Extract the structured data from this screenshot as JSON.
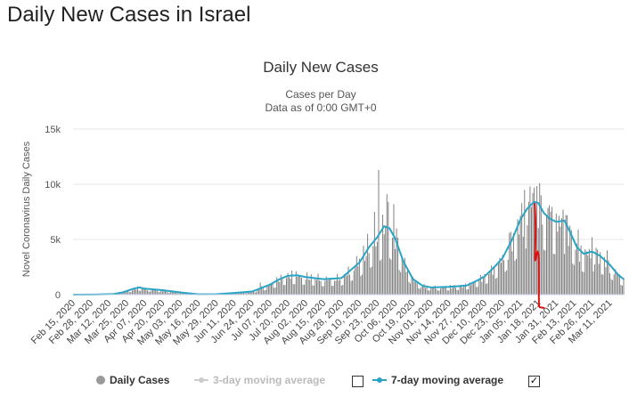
{
  "page": {
    "title": "Daily New Cases in Israel"
  },
  "chart_data": {
    "type": "bar",
    "title": "Daily New Cases",
    "subtitle_line1": "Cases per Day",
    "subtitle_line2": "Data as of 0:00 GMT+0",
    "ylabel": "Novel Coronavirus Daily Cases",
    "ylim": [
      0,
      15000
    ],
    "yticks": [
      0,
      5000,
      10000,
      15000
    ],
    "ytick_labels": [
      "0",
      "5k",
      "10k",
      "15k"
    ],
    "date_start": "2020-02-15",
    "date_end": "2021-03-21",
    "xtick_labels": [
      "Feb 15, 2020",
      "Feb 28, 2020",
      "Mar 12, 2020",
      "Mar 25, 2020",
      "Apr 07, 2020",
      "Apr 20, 2020",
      "May 03, 2020",
      "May 16, 2020",
      "May 29, 2020",
      "Jun 11, 2020",
      "Jun 24, 2020",
      "Jul 07, 2020",
      "Jul 20, 2020",
      "Aug 02, 2020",
      "Aug 15, 2020",
      "Aug 28, 2020",
      "Sep 10, 2020",
      "Sep 23, 2020",
      "Oct 06, 2020",
      "Oct 19, 2020",
      "Nov 01, 2020",
      "Nov 14, 2020",
      "Nov 27, 2020",
      "Dec 10, 2020",
      "Dec 23, 2020",
      "Jan 05, 2021",
      "Jan 18, 2021",
      "Jan 31, 2021",
      "Feb 13, 2021",
      "Feb 26, 2021",
      "Mar 11, 2021"
    ],
    "series": [
      {
        "name": "7-day moving average",
        "color": "#2aa4c5",
        "points": [
          [
            "2020-02-15",
            0
          ],
          [
            "2020-03-01",
            5
          ],
          [
            "2020-03-15",
            50
          ],
          [
            "2020-03-22",
            200
          ],
          [
            "2020-03-29",
            500
          ],
          [
            "2020-04-03",
            650
          ],
          [
            "2020-04-07",
            550
          ],
          [
            "2020-04-20",
            400
          ],
          [
            "2020-05-03",
            200
          ],
          [
            "2020-05-16",
            30
          ],
          [
            "2020-05-29",
            40
          ],
          [
            "2020-06-11",
            150
          ],
          [
            "2020-06-24",
            280
          ],
          [
            "2020-07-07",
            900
          ],
          [
            "2020-07-14",
            1400
          ],
          [
            "2020-07-20",
            1700
          ],
          [
            "2020-07-27",
            1750
          ],
          [
            "2020-08-02",
            1600
          ],
          [
            "2020-08-15",
            1400
          ],
          [
            "2020-08-28",
            1500
          ],
          [
            "2020-09-10",
            2900
          ],
          [
            "2020-09-17",
            4300
          ],
          [
            "2020-09-23",
            5200
          ],
          [
            "2020-09-28",
            6200
          ],
          [
            "2020-10-02",
            6000
          ],
          [
            "2020-10-06",
            5100
          ],
          [
            "2020-10-12",
            3000
          ],
          [
            "2020-10-19",
            1400
          ],
          [
            "2020-10-26",
            800
          ],
          [
            "2020-11-01",
            650
          ],
          [
            "2020-11-14",
            700
          ],
          [
            "2020-11-27",
            820
          ],
          [
            "2020-12-05",
            1300
          ],
          [
            "2020-12-10",
            1650
          ],
          [
            "2020-12-17",
            2500
          ],
          [
            "2020-12-23",
            3300
          ],
          [
            "2020-12-30",
            5000
          ],
          [
            "2021-01-05",
            6800
          ],
          [
            "2021-01-10",
            7800
          ],
          [
            "2021-01-15",
            8400
          ],
          [
            "2021-01-18",
            8300
          ],
          [
            "2021-01-22",
            7400
          ],
          [
            "2021-01-26",
            6900
          ],
          [
            "2021-01-31",
            6600
          ],
          [
            "2021-02-06",
            6700
          ],
          [
            "2021-02-10",
            5700
          ],
          [
            "2021-02-15",
            4300
          ],
          [
            "2021-02-20",
            3700
          ],
          [
            "2021-02-26",
            3900
          ],
          [
            "2021-03-04",
            3500
          ],
          [
            "2021-03-11",
            2700
          ],
          [
            "2021-03-17",
            1800
          ],
          [
            "2021-03-21",
            1400
          ]
        ]
      }
    ],
    "daily_spikes": [
      [
        "2020-04-02",
        750
      ],
      [
        "2020-06-30",
        1100
      ],
      [
        "2020-07-20",
        1950
      ],
      [
        "2020-08-11",
        1900
      ],
      [
        "2020-09-08",
        3500
      ],
      [
        "2020-09-16",
        5500
      ],
      [
        "2020-09-21",
        7500
      ],
      [
        "2020-09-24",
        11300
      ],
      [
        "2020-09-30",
        9100
      ],
      [
        "2020-10-01",
        8400
      ],
      [
        "2020-10-05",
        8200
      ],
      [
        "2020-10-07",
        6000
      ],
      [
        "2020-12-28",
        5600
      ],
      [
        "2021-01-08",
        9500
      ],
      [
        "2021-01-12",
        9800
      ],
      [
        "2021-01-15",
        9700
      ],
      [
        "2021-01-19",
        10100
      ],
      [
        "2021-01-26",
        8100
      ],
      [
        "2021-02-05",
        7700
      ],
      [
        "2021-02-16",
        5900
      ],
      [
        "2021-02-26",
        5200
      ],
      [
        "2021-03-09",
        4000
      ]
    ],
    "bar_color": "#777777",
    "annotation_color": "#e01010",
    "legend": [
      {
        "label": "Daily Cases",
        "color": "#999999",
        "enabled": true
      },
      {
        "label": "3-day moving average",
        "color": "#bbbbbb",
        "enabled": false,
        "checked": false
      },
      {
        "label": "7-day moving average",
        "color": "#2aa4c5",
        "enabled": true,
        "checked": true
      }
    ],
    "grid": true
  }
}
